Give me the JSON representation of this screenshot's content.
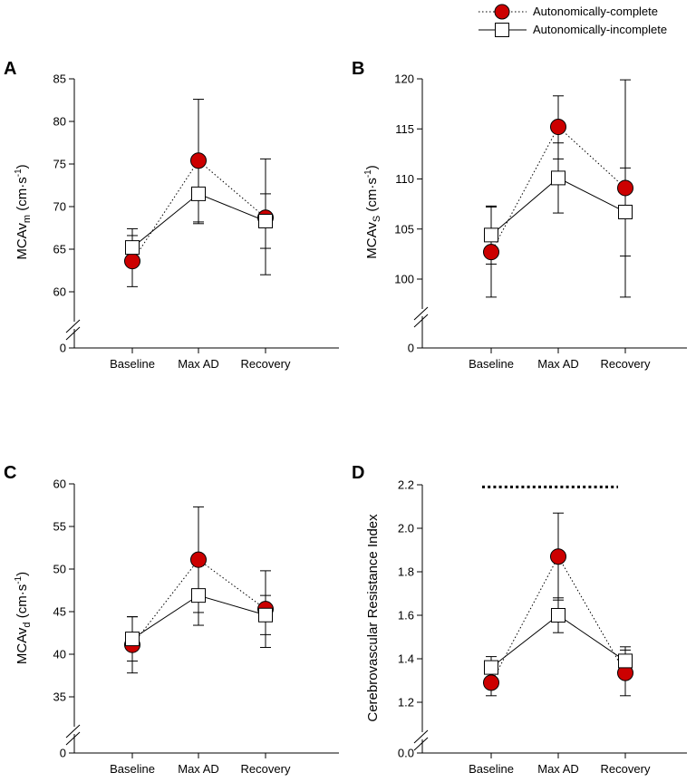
{
  "legend": {
    "complete": "Autonomically-complete",
    "incomplete": "Autonomically-incomplete"
  },
  "colors": {
    "complete_fill": "#cc0000",
    "incomplete_fill": "#ffffff",
    "stroke": "#000000"
  },
  "chart_data": [
    {
      "panel": "A",
      "type": "line",
      "ylabel": "MCAvm (cm·s-1)",
      "ylabel_main": "MCAv",
      "ylabel_sub": "m",
      "ylabel_unit": " (cm·s",
      "ylabel_sup": "-1",
      "ylabel_close": ")",
      "categories": [
        "Baseline",
        "Max AD",
        "Recovery"
      ],
      "ylim": [
        60,
        85
      ],
      "yticks": [
        60,
        65,
        70,
        75,
        80,
        85
      ],
      "ytick_labels": [
        "60",
        "65",
        "70",
        "75",
        "80",
        "85"
      ],
      "axis_break": true,
      "zero_label": "0",
      "series": [
        {
          "name": "Autonomically-complete",
          "marker": "circle",
          "line": "dotted",
          "values": [
            63.6,
            75.4,
            68.7
          ],
          "err_low": [
            3.0,
            7.4,
            6.7
          ],
          "err_high": [
            3.0,
            7.2,
            6.9
          ]
        },
        {
          "name": "Autonomically-incomplete",
          "marker": "square",
          "line": "solid",
          "values": [
            65.2,
            71.5,
            68.3
          ],
          "err_low": [
            1.6,
            3.3,
            3.2
          ],
          "err_high": [
            2.2,
            3.6,
            3.2
          ]
        }
      ]
    },
    {
      "panel": "B",
      "type": "line",
      "ylabel": "MCAvs (cm·s-1)",
      "ylabel_main": "MCAv",
      "ylabel_sub": "S",
      "ylabel_unit": " (cm·s",
      "ylabel_sup": "-1",
      "ylabel_close": ")",
      "categories": [
        "Baseline",
        "Max AD",
        "Recovery"
      ],
      "ylim": [
        100,
        120
      ],
      "yticks": [
        100,
        105,
        110,
        115,
        120
      ],
      "ytick_labels": [
        "100",
        "105",
        "110",
        "115",
        "120"
      ],
      "axis_break": true,
      "zero_label": "0",
      "series": [
        {
          "name": "Autonomically-complete",
          "marker": "circle",
          "line": "dotted",
          "values": [
            102.7,
            115.2,
            109.1
          ],
          "err_low": [
            4.5,
            3.2,
            10.9
          ],
          "err_high": [
            4.5,
            3.1,
            10.8
          ]
        },
        {
          "name": "Autonomically-incomplete",
          "marker": "square",
          "line": "solid",
          "values": [
            104.4,
            110.1,
            106.7
          ],
          "err_low": [
            2.9,
            3.5,
            4.4
          ],
          "err_high": [
            2.9,
            3.5,
            4.4
          ]
        }
      ]
    },
    {
      "panel": "C",
      "type": "line",
      "ylabel": "MCAvd (cm·s-1)",
      "ylabel_main": "MCAv",
      "ylabel_sub": "d",
      "ylabel_unit": " (cm·s",
      "ylabel_sup": "-1",
      "ylabel_close": ")",
      "categories": [
        "Baseline",
        "Max AD",
        "Recovery"
      ],
      "ylim": [
        35,
        60
      ],
      "yticks": [
        35,
        40,
        45,
        50,
        55,
        60
      ],
      "ytick_labels": [
        "35",
        "40",
        "45",
        "50",
        "55",
        "60"
      ],
      "axis_break": true,
      "zero_label": "0",
      "series": [
        {
          "name": "Autonomically-complete",
          "marker": "circle",
          "line": "dotted",
          "values": [
            41.1,
            51.1,
            45.3
          ],
          "err_low": [
            3.3,
            6.2,
            4.5
          ],
          "err_high": [
            3.3,
            6.2,
            4.5
          ]
        },
        {
          "name": "Autonomically-incomplete",
          "marker": "square",
          "line": "solid",
          "values": [
            41.8,
            46.9,
            44.6
          ],
          "err_low": [
            2.6,
            3.5,
            2.3
          ],
          "err_high": [
            2.6,
            3.5,
            2.3
          ]
        }
      ]
    },
    {
      "panel": "D",
      "type": "line",
      "ylabel": "Cerebrovascular Resistance Index",
      "categories": [
        "Baseline",
        "Max AD",
        "Recovery"
      ],
      "ylim": [
        1.2,
        2.2
      ],
      "yticks": [
        1.2,
        1.4,
        1.6,
        1.8,
        2.0,
        2.2
      ],
      "ytick_labels": [
        "1.2",
        "1.4",
        "1.6",
        "1.8",
        "2.0",
        "2.2"
      ],
      "axis_break": true,
      "zero_label": "0.0",
      "significance_bars": [
        {
          "from": "Baseline",
          "to": "Max AD",
          "y": 2.19
        },
        {
          "from": "Max AD",
          "to": "Recovery",
          "y": 2.19
        }
      ],
      "series": [
        {
          "name": "Autonomically-complete",
          "marker": "circle",
          "line": "dotted",
          "values": [
            1.29,
            1.87,
            1.335
          ],
          "err_low": [
            0.06,
            0.2,
            0.105
          ],
          "err_high": [
            0.06,
            0.2,
            0.105
          ]
        },
        {
          "name": "Autonomically-incomplete",
          "marker": "square",
          "line": "solid",
          "values": [
            1.36,
            1.6,
            1.39
          ],
          "err_low": [
            0.05,
            0.08,
            0.065
          ],
          "err_high": [
            0.05,
            0.08,
            0.065
          ]
        }
      ]
    }
  ]
}
